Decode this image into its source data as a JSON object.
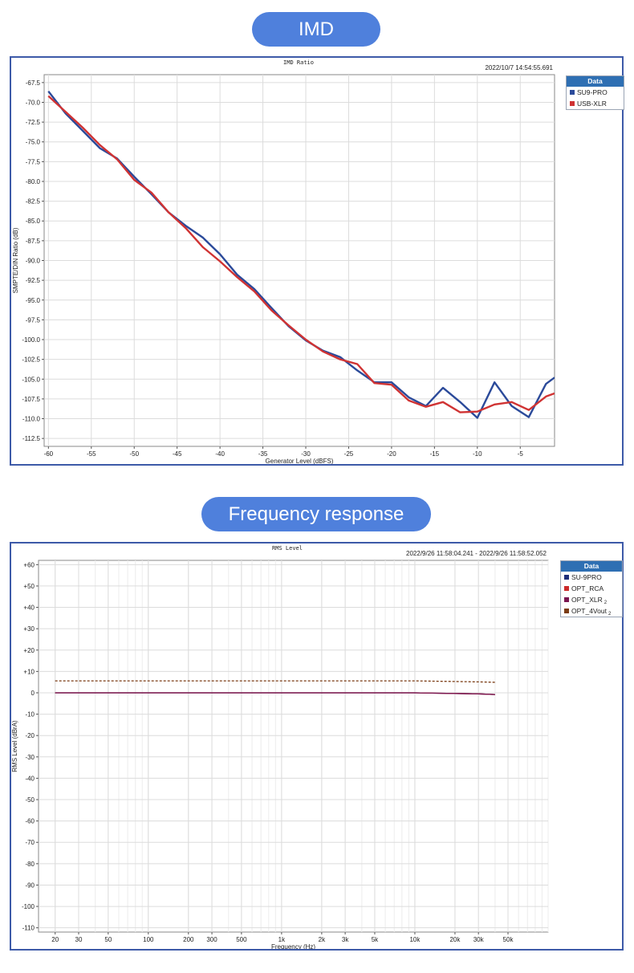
{
  "headings": {
    "imd": "IMD",
    "frequency": "Frequency response"
  },
  "chart_data": [
    {
      "type": "line",
      "title": "IMD Ratio",
      "timestamp": "2022/10/7 14:54:55.691",
      "xlabel": "Generator Level (dBFS)",
      "ylabel": "SMPTE/DIN Ratio (dB)",
      "xlim": [
        -60.5,
        -1.0
      ],
      "ylim": [
        -113.5,
        -66.5
      ],
      "xticks": [
        -60,
        -55,
        -50,
        -45,
        -40,
        -35,
        -30,
        -25,
        -20,
        -15,
        -10,
        -5
      ],
      "yticks": [
        -67.5,
        -70.0,
        -72.5,
        -75.0,
        -77.5,
        -80.0,
        -82.5,
        -85.0,
        -87.5,
        -90.0,
        -92.5,
        -95.0,
        -97.5,
        -100.0,
        -102.5,
        -105.0,
        -107.5,
        -110.0,
        -112.5
      ],
      "xtick_labels": [
        "-60",
        "-55",
        "-50",
        "-45",
        "-40",
        "-35",
        "-30",
        "-25",
        "-20",
        "-15",
        "-10",
        "-5"
      ],
      "ytick_labels": [
        "-67.5",
        "-70.0",
        "-72.5",
        "-75.0",
        "-77.5",
        "-80.0",
        "-82.5",
        "-85.0",
        "-87.5",
        "-90.0",
        "-92.5",
        "-95.0",
        "-97.5",
        "-100.0",
        "-102.5",
        "-105.0",
        "-107.5",
        "-110.0",
        "-112.5"
      ],
      "grid": true,
      "legend_title": "Data",
      "legend_position": "right",
      "series": [
        {
          "name": "SU9-PRO",
          "color": "#2b4a9a",
          "dash": false,
          "x": [
            -60,
            -58,
            -56,
            -54,
            -52,
            -50,
            -48,
            -46,
            -44,
            -42,
            -40,
            -38,
            -36,
            -34,
            -32,
            -30,
            -28,
            -26,
            -24,
            -22,
            -20,
            -18,
            -16,
            -14,
            -12,
            -10,
            -8,
            -6,
            -4,
            -2,
            -1
          ],
          "y": [
            -68.6,
            -71.4,
            -73.6,
            -75.8,
            -77.1,
            -79.4,
            -81.6,
            -83.9,
            -85.6,
            -87.1,
            -89.2,
            -91.8,
            -93.6,
            -96.0,
            -98.3,
            -100.1,
            -101.4,
            -102.2,
            -103.9,
            -105.4,
            -105.4,
            -107.3,
            -108.4,
            -106.1,
            -107.9,
            -109.9,
            -105.4,
            -108.4,
            -109.8,
            -105.6,
            -104.8
          ]
        },
        {
          "name": "USB-XLR",
          "color": "#d03333",
          "dash": false,
          "x": [
            -60,
            -58,
            -56,
            -54,
            -52,
            -50,
            -48,
            -46,
            -44,
            -42,
            -40,
            -38,
            -36,
            -34,
            -32,
            -30,
            -28,
            -26,
            -24,
            -22,
            -20,
            -18,
            -16,
            -14,
            -12,
            -10,
            -8,
            -6,
            -4,
            -2,
            -1
          ],
          "y": [
            -69.2,
            -71.2,
            -73.2,
            -75.4,
            -77.2,
            -79.8,
            -81.4,
            -83.9,
            -85.9,
            -88.3,
            -90.1,
            -92.1,
            -93.9,
            -96.3,
            -98.2,
            -100.0,
            -101.5,
            -102.5,
            -103.1,
            -105.5,
            -105.7,
            -107.7,
            -108.5,
            -107.9,
            -109.2,
            -109.1,
            -108.2,
            -107.9,
            -108.9,
            -107.2,
            -106.8
          ]
        }
      ]
    },
    {
      "type": "line",
      "title": "RMS Level",
      "timestamp": "2022/9/26 11:58:04.241 -   2022/9/26 11:58:52.052",
      "xlabel": "Frequency (Hz)",
      "ylabel": "RMS Level (dBrA)",
      "xscale": "log",
      "xlim": [
        15,
        100000
      ],
      "ylim": [
        -112,
        62
      ],
      "xticks": [
        20,
        30,
        50,
        100,
        200,
        300,
        500,
        1000,
        2000,
        3000,
        5000,
        10000,
        20000,
        30000,
        50000
      ],
      "xtick_labels": [
        "20",
        "30",
        "50",
        "100",
        "200",
        "300",
        "500",
        "1k",
        "2k",
        "3k",
        "5k",
        "10k",
        "20k",
        "30k",
        "50k"
      ],
      "yticks": [
        60,
        50,
        40,
        30,
        20,
        10,
        0,
        -10,
        -20,
        -30,
        -40,
        -50,
        -60,
        -70,
        -80,
        -90,
        -100,
        -110
      ],
      "ytick_labels": [
        "+60",
        "+50",
        "+40",
        "+30",
        "+20",
        "+10",
        "0",
        "-10",
        "-20",
        "-30",
        "-40",
        "-50",
        "-60",
        "-70",
        "-80",
        "-90",
        "-100",
        "-110"
      ],
      "grid": true,
      "legend_title": "Data",
      "legend_position": "right",
      "series": [
        {
          "name": "SU-9PRO",
          "subscript": "",
          "color": "#1f2f7a",
          "dash": false,
          "x": [
            20,
            100,
            1000,
            10000,
            15000,
            20000,
            30000,
            40000
          ],
          "y": [
            0,
            0,
            0,
            0,
            -0.2,
            -0.3,
            -0.5,
            -0.8
          ]
        },
        {
          "name": "OPT_RCA",
          "subscript": "",
          "color": "#cc2a2a",
          "dash": false,
          "x": [
            20,
            100,
            1000,
            10000,
            15000,
            20000,
            30000,
            40000
          ],
          "y": [
            0,
            0,
            0,
            0,
            -0.2,
            -0.3,
            -0.5,
            -0.8
          ]
        },
        {
          "name": "OPT_XLR",
          "subscript": "2",
          "color": "#7a1550",
          "dash": false,
          "x": [
            20,
            100,
            1000,
            10000,
            15000,
            20000,
            30000,
            40000
          ],
          "y": [
            0,
            0,
            0,
            0,
            -0.2,
            -0.3,
            -0.5,
            -0.8
          ]
        },
        {
          "name": "OPT_4Vout",
          "subscript": "2",
          "color": "#7a3a12",
          "dash": true,
          "x": [
            20,
            100,
            1000,
            10000,
            15000,
            20000,
            30000,
            40000
          ],
          "y": [
            5.6,
            5.6,
            5.6,
            5.6,
            5.4,
            5.3,
            5.1,
            4.9
          ]
        }
      ]
    }
  ]
}
